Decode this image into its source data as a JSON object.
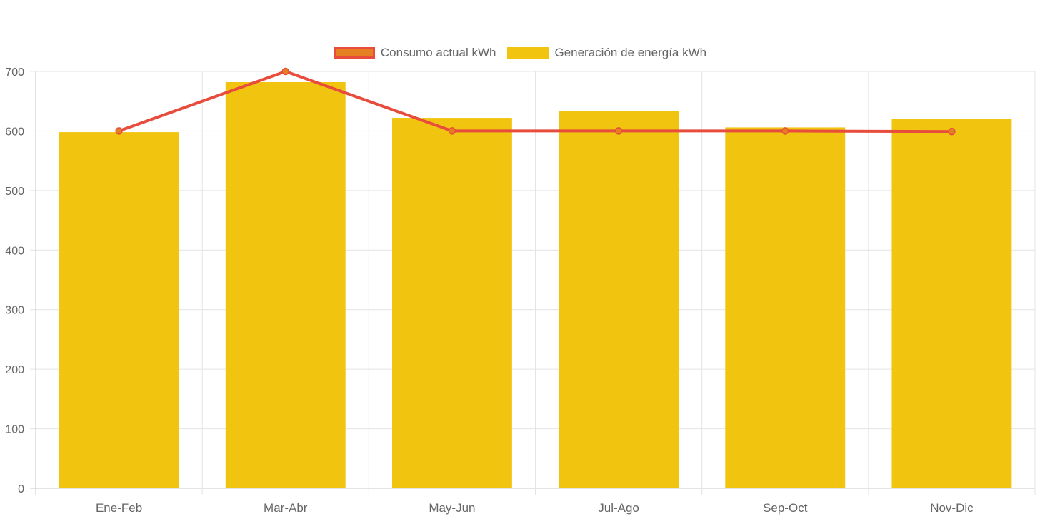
{
  "chart_data": {
    "type": "bar",
    "categories": [
      "Ene-Feb",
      "Mar-Abr",
      "May-Jun",
      "Jul-Ago",
      "Sep-Oct",
      "Nov-Dic"
    ],
    "series": [
      {
        "name": "Consumo actual kWh",
        "type": "line",
        "values": [
          600,
          700,
          600,
          600,
          600,
          599
        ],
        "color": "#e74c3c",
        "point_color": "#e67e22"
      },
      {
        "name": "Generación de energía kWh",
        "type": "bar",
        "values": [
          598,
          682,
          622,
          633,
          606,
          620
        ],
        "color": "#f1c40f"
      }
    ],
    "ylim": [
      0,
      700
    ],
    "yticks": [
      0,
      100,
      200,
      300,
      400,
      500,
      600,
      700
    ],
    "grid": true,
    "legend_position": "top"
  }
}
